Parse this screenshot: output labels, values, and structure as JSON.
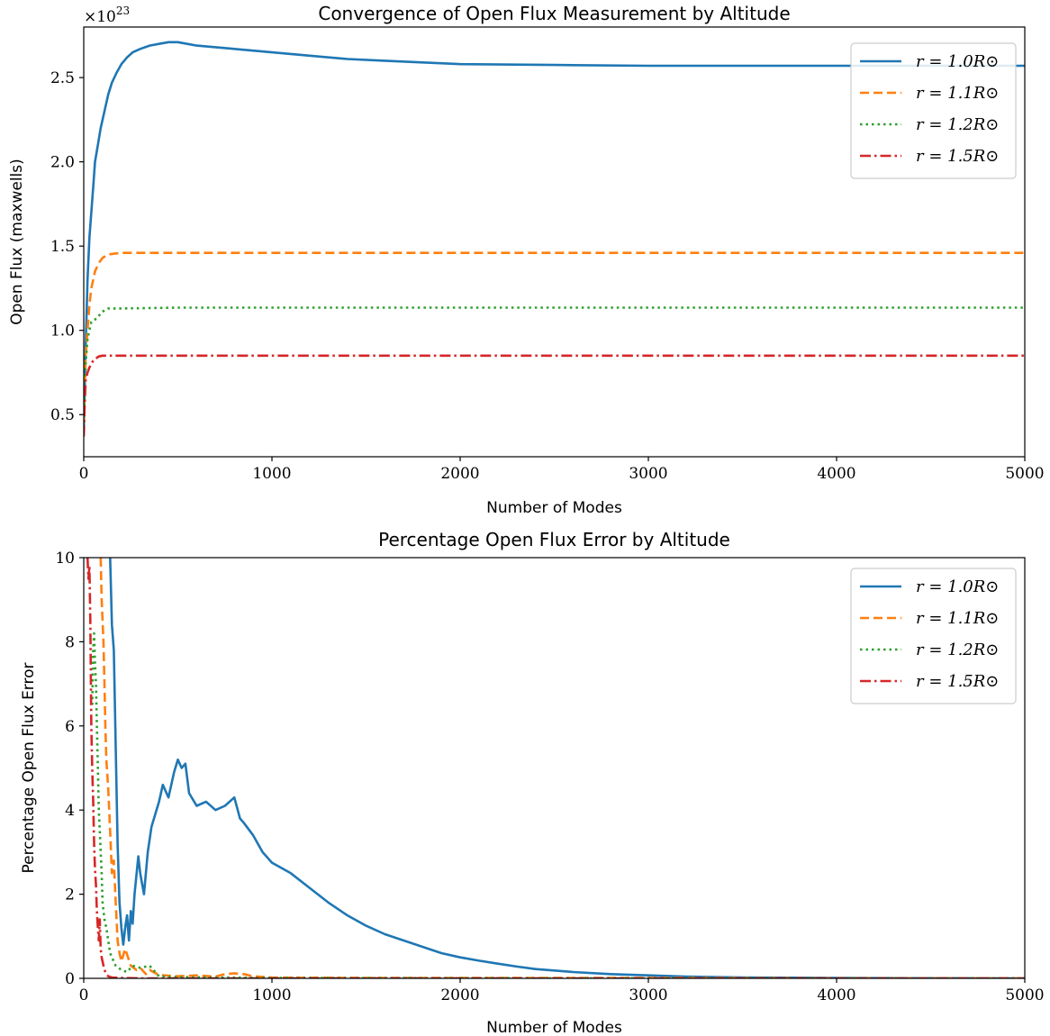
{
  "chart_data": [
    {
      "type": "line",
      "title": "Convergence of Open Flux Measurement by Altitude",
      "xlabel": "Number of Modes",
      "ylabel": "Open Flux (maxwells)",
      "y_offset_label": "×10^23",
      "y_multiplier": "×10",
      "y_exponent": "23",
      "xlim": [
        0,
        5000
      ],
      "ylim": [
        0.25,
        2.8
      ],
      "xticks": [
        "0",
        "1000",
        "2000",
        "3000",
        "4000",
        "5000"
      ],
      "yticks": [
        "0.5",
        "1.0",
        "1.5",
        "2.0",
        "2.5"
      ],
      "grid": false,
      "legend_position": "top-right",
      "series": [
        {
          "name": "r = 1.0R⊙",
          "color": "#1f77b4",
          "style": "solid",
          "x": [
            0,
            10,
            20,
            30,
            40,
            50,
            60,
            75,
            90,
            110,
            130,
            150,
            175,
            200,
            230,
            260,
            300,
            350,
            400,
            450,
            500,
            550,
            600,
            700,
            800,
            900,
            1000,
            1200,
            1400,
            1600,
            1800,
            2000,
            2500,
            3000,
            3500,
            4000,
            4500,
            5000
          ],
          "y": [
            0.4,
            0.9,
            1.3,
            1.55,
            1.7,
            1.85,
            2.0,
            2.1,
            2.2,
            2.3,
            2.4,
            2.47,
            2.53,
            2.58,
            2.62,
            2.65,
            2.67,
            2.69,
            2.7,
            2.71,
            2.71,
            2.7,
            2.69,
            2.68,
            2.67,
            2.66,
            2.65,
            2.63,
            2.61,
            2.6,
            2.59,
            2.58,
            2.575,
            2.57,
            2.57,
            2.57,
            2.57,
            2.57
          ]
        },
        {
          "name": "r = 1.1R⊙",
          "color": "#ff7f0e",
          "style": "dashed",
          "x": [
            0,
            10,
            20,
            30,
            40,
            50,
            60,
            80,
            100,
            130,
            160,
            200,
            300,
            500,
            1000,
            2000,
            3000,
            4000,
            5000
          ],
          "y": [
            0.45,
            0.85,
            1.0,
            1.15,
            1.25,
            1.3,
            1.35,
            1.4,
            1.43,
            1.45,
            1.455,
            1.46,
            1.46,
            1.46,
            1.46,
            1.46,
            1.46,
            1.46,
            1.46
          ]
        },
        {
          "name": "r = 1.2R⊙",
          "color": "#2ca02c",
          "style": "dotted",
          "x": [
            0,
            10,
            20,
            30,
            40,
            50,
            70,
            90,
            110,
            130,
            160,
            200,
            500,
            1000,
            2000,
            3000,
            4000,
            5000
          ],
          "y": [
            0.45,
            0.8,
            0.95,
            1.0,
            1.05,
            1.06,
            1.07,
            1.1,
            1.12,
            1.13,
            1.13,
            1.13,
            1.135,
            1.135,
            1.135,
            1.135,
            1.135,
            1.135
          ]
        },
        {
          "name": "r = 1.5R⊙",
          "color": "#d62728",
          "style": "dashdot",
          "x": [
            0,
            5,
            10,
            20,
            30,
            40,
            50,
            60,
            80,
            100,
            120,
            200,
            500,
            1000,
            2000,
            3000,
            4000,
            5000
          ],
          "y": [
            0.37,
            0.55,
            0.7,
            0.75,
            0.78,
            0.8,
            0.82,
            0.83,
            0.845,
            0.85,
            0.85,
            0.85,
            0.85,
            0.85,
            0.85,
            0.85,
            0.85,
            0.85
          ]
        }
      ]
    },
    {
      "type": "line",
      "title": "Percentage Open Flux Error by Altitude",
      "xlabel": "Number of Modes",
      "ylabel": "Percentage Open Flux Error",
      "xlim": [
        0,
        5000
      ],
      "ylim": [
        0,
        10
      ],
      "xticks": [
        "0",
        "1000",
        "2000",
        "3000",
        "4000",
        "5000"
      ],
      "yticks": [
        "0",
        "2",
        "4",
        "6",
        "8",
        "10"
      ],
      "grid": false,
      "legend_position": "top-right",
      "series": [
        {
          "name": "r = 1.0R⊙",
          "color": "#1f77b4",
          "style": "solid",
          "x": [
            140,
            150,
            160,
            170,
            180,
            190,
            200,
            210,
            220,
            230,
            240,
            250,
            260,
            270,
            290,
            300,
            320,
            340,
            360,
            380,
            400,
            420,
            450,
            480,
            500,
            520,
            540,
            560,
            600,
            650,
            700,
            750,
            800,
            830,
            850,
            900,
            950,
            1000,
            1100,
            1200,
            1300,
            1400,
            1500,
            1600,
            1700,
            1800,
            1900,
            2000,
            2100,
            2200,
            2300,
            2400,
            2600,
            2800,
            3000,
            3200,
            3500,
            4000,
            4500,
            5000
          ],
          "y": [
            10,
            8.4,
            7.8,
            5.5,
            3.2,
            1.8,
            1.2,
            0.8,
            1.2,
            1.5,
            0.9,
            1.6,
            1.3,
            2.0,
            2.9,
            2.5,
            2.0,
            3.0,
            3.6,
            3.9,
            4.2,
            4.6,
            4.3,
            4.9,
            5.2,
            5.0,
            5.1,
            4.4,
            4.1,
            4.2,
            4.0,
            4.1,
            4.3,
            3.8,
            3.7,
            3.4,
            3.0,
            2.75,
            2.5,
            2.15,
            1.8,
            1.5,
            1.25,
            1.05,
            0.9,
            0.75,
            0.6,
            0.5,
            0.42,
            0.35,
            0.28,
            0.22,
            0.15,
            0.1,
            0.07,
            0.04,
            0.02,
            0.01,
            0.005,
            0
          ]
        },
        {
          "name": "r = 1.1R⊙",
          "color": "#ff7f0e",
          "style": "dashed",
          "x": [
            90,
            95,
            100,
            105,
            110,
            115,
            120,
            130,
            140,
            150,
            160,
            170,
            180,
            190,
            200,
            220,
            250,
            280,
            300,
            330,
            350,
            400,
            500,
            600,
            700,
            750,
            800,
            850,
            900,
            1000,
            1500,
            2000,
            3000,
            4000,
            5000
          ],
          "y": [
            10,
            9.0,
            8.5,
            8.0,
            7.0,
            6.0,
            5.2,
            4.5,
            3.5,
            2.5,
            2.8,
            1.8,
            0.9,
            0.6,
            0.4,
            0.7,
            0.3,
            0.2,
            0.25,
            0.1,
            0.2,
            0.08,
            0.05,
            0.07,
            0.04,
            0.1,
            0.12,
            0.1,
            0.05,
            0.02,
            0.01,
            0.01,
            0.01,
            0,
            0
          ]
        },
        {
          "name": "r = 1.2R⊙",
          "color": "#2ca02c",
          "style": "dotted",
          "x": [
            45,
            50,
            55,
            60,
            65,
            70,
            75,
            80,
            85,
            90,
            95,
            100,
            110,
            120,
            130,
            140,
            150,
            170,
            200,
            230,
            260,
            300,
            350,
            380,
            400,
            500,
            1000,
            2000,
            3000,
            4000,
            5000
          ],
          "y": [
            6.5,
            7.8,
            8.2,
            7.5,
            7.0,
            6.0,
            5.0,
            4.0,
            3.5,
            3.0,
            2.5,
            1.8,
            1.4,
            1.2,
            0.9,
            0.6,
            0.5,
            0.3,
            0.2,
            0.15,
            0.3,
            0.25,
            0.3,
            0.15,
            0.05,
            0.03,
            0.01,
            0.005,
            0,
            0,
            0
          ]
        },
        {
          "name": "r = 1.5R⊙",
          "color": "#d62728",
          "style": "dashdot",
          "x": [
            20,
            25,
            30,
            35,
            40,
            45,
            50,
            55,
            60,
            65,
            70,
            75,
            80,
            85,
            90,
            95,
            100,
            110,
            120,
            130,
            150,
            200,
            300,
            500,
            1000,
            2000,
            3000,
            4000,
            5000
          ],
          "y": [
            10,
            9.5,
            9.8,
            8.5,
            6.0,
            5.0,
            4.2,
            3.2,
            2.6,
            2.2,
            1.6,
            1.2,
            0.9,
            1.4,
            0.7,
            0.5,
            0.4,
            0.2,
            0.1,
            0.05,
            0.02,
            0.01,
            0,
            0,
            0,
            0,
            0,
            0,
            0
          ]
        }
      ]
    }
  ]
}
